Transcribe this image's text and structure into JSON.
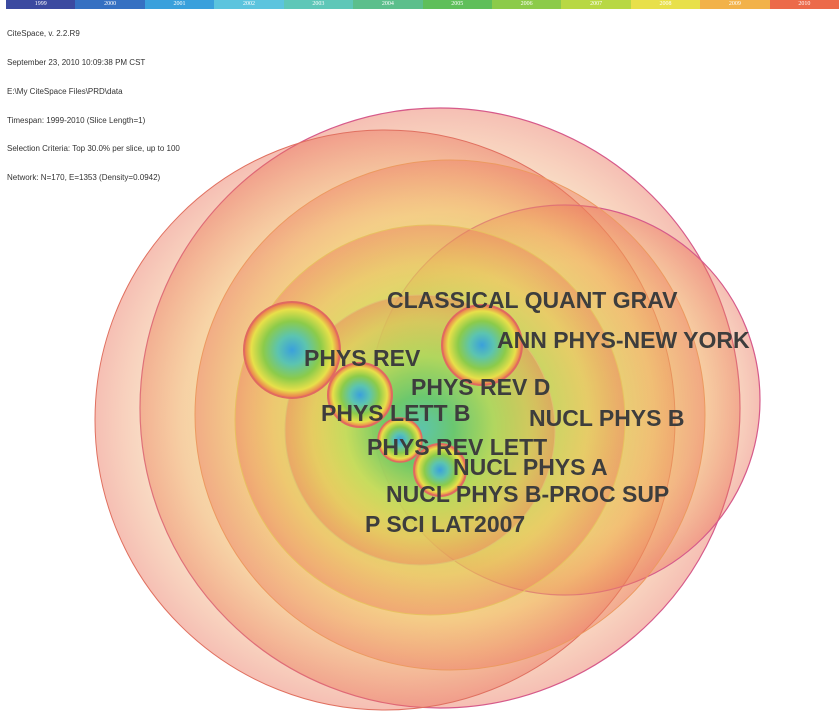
{
  "timeline": {
    "years": [
      "1999",
      "2000",
      "2001",
      "2002",
      "2003",
      "2004",
      "2005",
      "2006",
      "2007",
      "2008",
      "2009",
      "2010"
    ],
    "colors": [
      "#3b4aa0",
      "#3570c2",
      "#3aa0dc",
      "#5cc4de",
      "#5ec7b8",
      "#5cbf8c",
      "#5fbf5a",
      "#8ccb4a",
      "#b8d844",
      "#e8e04a",
      "#f2b24a",
      "#ec6a4a"
    ]
  },
  "meta": {
    "lines": [
      "CiteSpace, v. 2.2.R9",
      "September 23, 2010 10:09:38 PM CST",
      "E:\\My CiteSpace Files\\PRD\\data",
      "Timespan: 1999-2010 (Slice Length=1)",
      "Selection Criteria: Top 30.0% per slice, up to 100",
      "Network: N=170, E=1353 (Density=0.0942)"
    ]
  },
  "nodes": [
    {
      "id": "classical-quant-grav",
      "label": "CLASSICAL QUANT GRAV"
    },
    {
      "id": "ann-phys-new-york",
      "label": "ANN PHYS-NEW YORK"
    },
    {
      "id": "phys-rev",
      "label": "PHYS REV"
    },
    {
      "id": "phys-rev-d",
      "label": "PHYS REV D"
    },
    {
      "id": "phys-lett-b",
      "label": "PHYS LETT B"
    },
    {
      "id": "nucl-phys-b",
      "label": "NUCL PHYS B"
    },
    {
      "id": "phys-rev-lett",
      "label": "PHYS REV LETT"
    },
    {
      "id": "nucl-phys-a",
      "label": "NUCL PHYS A"
    },
    {
      "id": "nucl-phys-b-proc-sup",
      "label": "NUCL PHYS B-PROC SUP"
    },
    {
      "id": "p-sci-lat2007",
      "label": "P SCI LAT2007"
    }
  ]
}
